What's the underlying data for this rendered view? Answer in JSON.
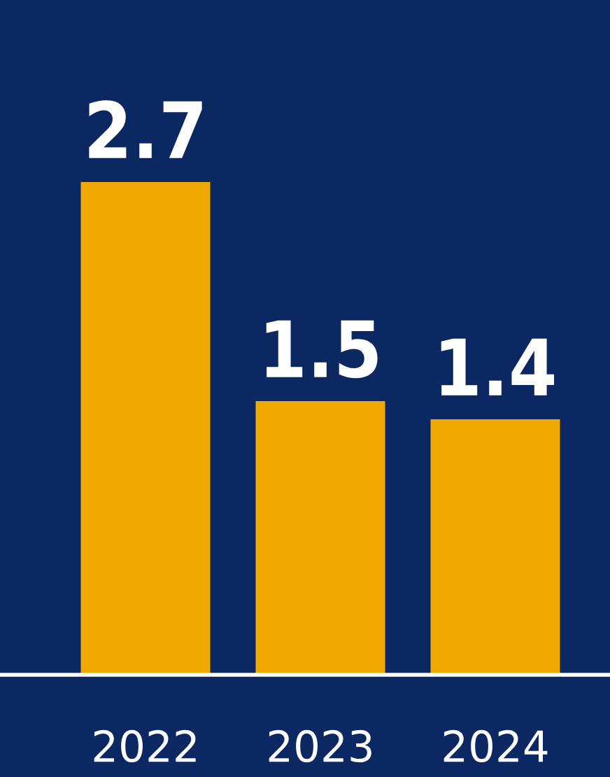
{
  "chart_data": {
    "type": "bar",
    "categories": [
      "2022",
      "2023",
      "2024"
    ],
    "values": [
      2.7,
      1.5,
      1.4
    ],
    "color": "#f0a900",
    "data_labels": true,
    "grid": false,
    "legend": false
  }
}
